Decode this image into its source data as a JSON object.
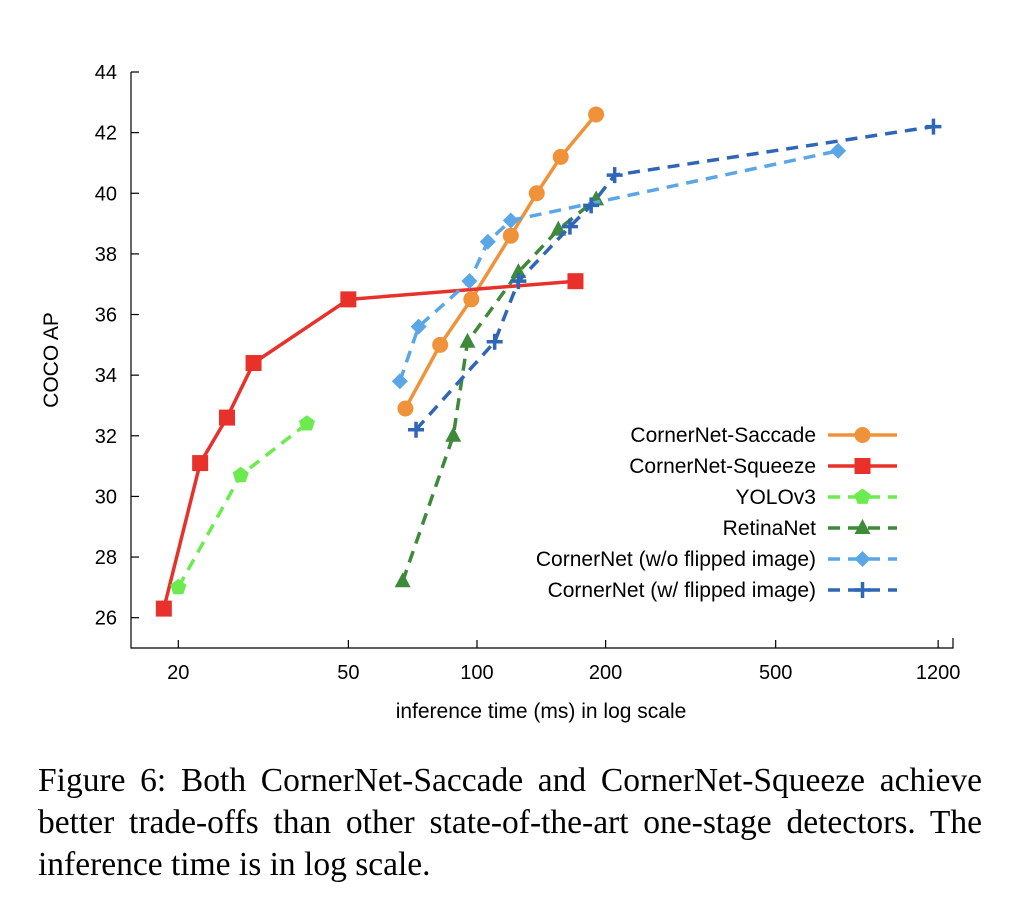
{
  "chart_data": {
    "type": "line",
    "xlabel": "inference time (ms) in log scale",
    "ylabel": "COCO AP",
    "x_scale": "log",
    "xlim": [
      15.5,
      1300
    ],
    "ylim": [
      25,
      44
    ],
    "x_ticks": [
      20,
      50,
      100,
      200,
      500,
      1200
    ],
    "y_ticks": [
      26,
      28,
      30,
      32,
      34,
      36,
      38,
      40,
      42,
      44
    ],
    "grid": false,
    "legend_position": "bottom-right",
    "series": [
      {
        "name": "CornerNet-Saccade",
        "color": "#F0923A",
        "dash": "solid",
        "marker": "circle",
        "x": [
          68,
          82,
          97,
          120,
          138,
          157,
          190
        ],
        "y": [
          32.9,
          35.0,
          36.5,
          38.6,
          40.0,
          41.2,
          42.6
        ]
      },
      {
        "name": "CornerNet-Squeeze",
        "color": "#E8312A",
        "dash": "solid",
        "marker": "square",
        "x": [
          18.5,
          22.5,
          26,
          30,
          50,
          170
        ],
        "y": [
          26.3,
          31.1,
          32.6,
          34.4,
          36.5,
          37.1
        ]
      },
      {
        "name": "YOLOv3",
        "color": "#6CEB4F",
        "dash": "dashed",
        "marker": "pentagon",
        "x": [
          20,
          28,
          40
        ],
        "y": [
          27.0,
          30.7,
          32.4
        ]
      },
      {
        "name": "RetinaNet",
        "color": "#3E8A3A",
        "dash": "dashed",
        "marker": "triangle",
        "x": [
          67,
          88,
          95,
          125,
          155,
          190
        ],
        "y": [
          27.2,
          32.0,
          35.1,
          37.4,
          38.8,
          39.8
        ]
      },
      {
        "name": "CornerNet (w/o flipped image)",
        "color": "#5AA6E6",
        "dash": "dashed",
        "marker": "diamond",
        "x": [
          66,
          73,
          96,
          106,
          120,
          700
        ],
        "y": [
          33.8,
          35.6,
          37.1,
          38.4,
          39.1,
          41.4
        ]
      },
      {
        "name": "CornerNet (w/ flipped image)",
        "color": "#2F66B5",
        "dash": "dashed",
        "marker": "plus",
        "x": [
          72,
          110,
          125,
          165,
          185,
          210,
          1170
        ],
        "y": [
          32.2,
          35.1,
          37.1,
          38.9,
          39.6,
          40.6,
          42.2
        ]
      }
    ]
  },
  "caption": "Figure 6: Both CornerNet-Saccade and CornerNet-Squeeze achieve better trade-offs than other state-of-the-art one-stage detectors. The inference time is in log scale."
}
